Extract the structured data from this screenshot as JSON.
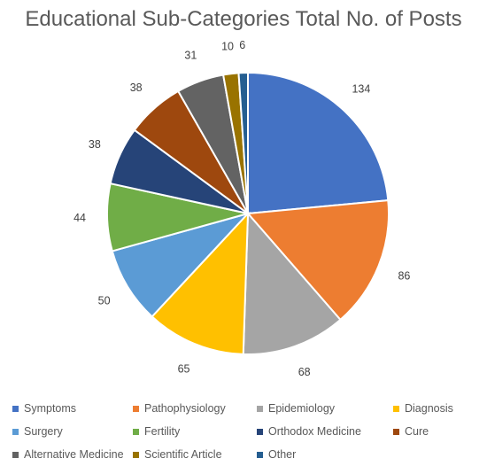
{
  "chart_data": {
    "type": "pie",
    "title": "Educational Sub-Categories Total No. of Posts",
    "categories": [
      "Symptoms",
      "Pathophysiology",
      "Epidemiology",
      "Diagnosis",
      "Surgery",
      "Fertility",
      "Orthodox Medicine",
      "Cure",
      "Alternative Medicine",
      "Scientific Article",
      "Other"
    ],
    "values": [
      134,
      86,
      68,
      65,
      50,
      44,
      38,
      38,
      31,
      10,
      6
    ],
    "colors": [
      "#4472C4",
      "#ED7D31",
      "#A5A5A5",
      "#FFC000",
      "#5B9BD5",
      "#70AD47",
      "#264478",
      "#9E480E",
      "#636363",
      "#997300",
      "#255E91"
    ],
    "legend_position": "bottom",
    "data_labels": true
  }
}
